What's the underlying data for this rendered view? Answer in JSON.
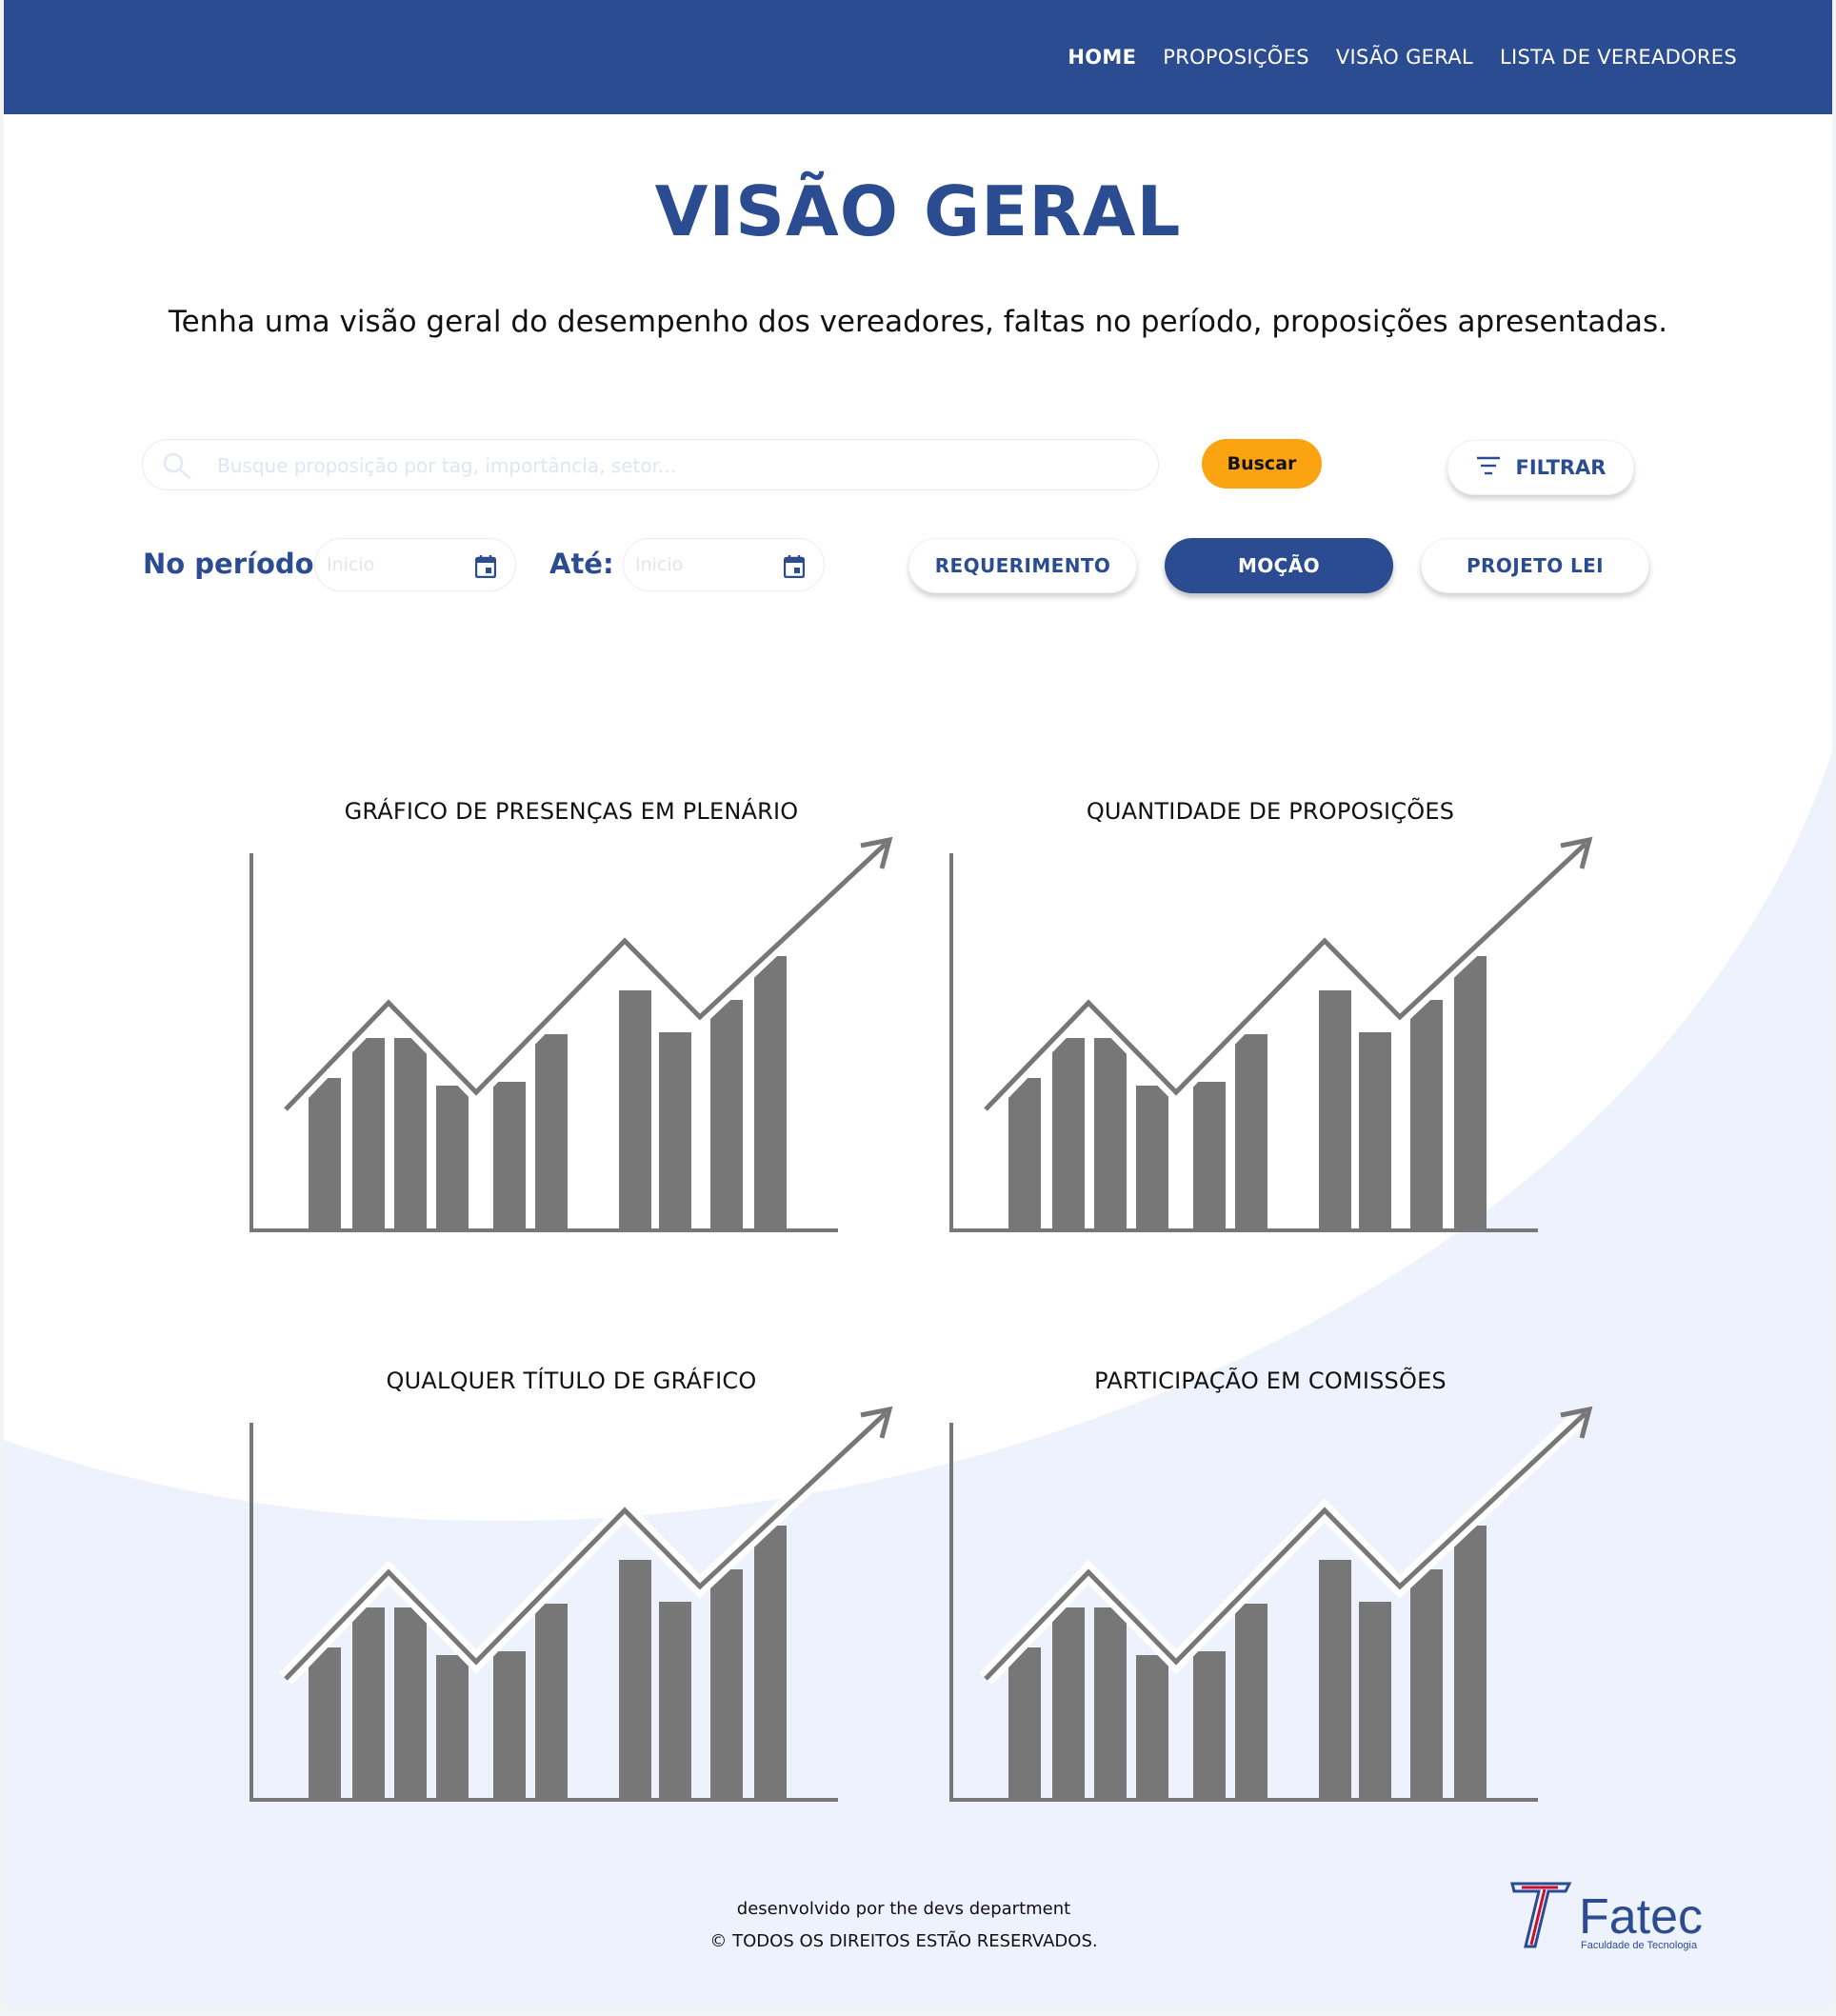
{
  "nav": {
    "items": [
      {
        "label": "HOME",
        "active": true
      },
      {
        "label": "PROPOSIÇÕES",
        "active": false
      },
      {
        "label": "VISÃO GERAL",
        "active": false
      },
      {
        "label": "LISTA DE VEREADORES",
        "active": false
      }
    ]
  },
  "page": {
    "title": "VISÃO GERAL",
    "subtitle": "Tenha uma visão geral do desempenho dos vereadores, faltas no período, proposições apresentadas."
  },
  "search": {
    "placeholder": "Busque proposição por tag, importância, setor...",
    "value": "",
    "button_label": "Buscar",
    "filter_label": "FILTRAR"
  },
  "period": {
    "from_label": "No período:",
    "from_placeholder": "Inicio",
    "to_label": "Até:",
    "to_placeholder": "Inicio"
  },
  "type_filters": [
    {
      "label": "REQUERIMENTO",
      "selected": false
    },
    {
      "label": "MOÇÃO",
      "selected": true
    },
    {
      "label": "PROJETO LEI",
      "selected": false
    }
  ],
  "charts": [
    {
      "title": "GRÁFICO DE PRESENÇAS EM PLENÁRIO"
    },
    {
      "title": "QUANTIDADE DE PROPOSIÇÕES"
    },
    {
      "title": "QUALQUER TÍTULO DE GRÁFICO"
    },
    {
      "title": "PARTICIPAÇÃO EM COMISSÕES"
    }
  ],
  "footer": {
    "credit": "desenvolvido por the devs department",
    "rights": "© TODOS OS DIREITOS ESTÃO RESERVADOS.",
    "logo_text": "Fatec",
    "logo_subtext": "Faculdade de Tecnologia"
  },
  "colors": {
    "primary": "#2b4c91",
    "accent": "#fca311",
    "background_curve": "#eef2fc",
    "chart_gray": "#777777"
  }
}
